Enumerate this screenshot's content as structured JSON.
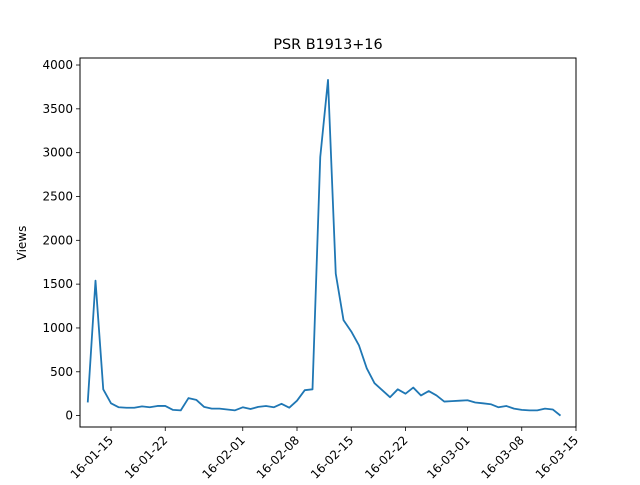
{
  "chart_data": {
    "type": "line",
    "title": "PSR B1913+16",
    "xlabel": "",
    "ylabel": "Views",
    "ylim": [
      -130,
      4080
    ],
    "yticks": [
      0,
      500,
      1000,
      1500,
      2000,
      2500,
      3000,
      3500,
      4000
    ],
    "xticks": [
      "2016-01-15",
      "2016-01-22",
      "2016-02-01",
      "2016-02-08",
      "2016-02-15",
      "2016-02-22",
      "2016-03-01",
      "2016-03-08",
      "2016-03-15"
    ],
    "xtick_labels": [
      "16-01-15",
      "16-01-22",
      "16-02-01",
      "16-02-08",
      "16-02-15",
      "16-02-22",
      "16-03-01",
      "16-03-08",
      "16-03-15"
    ],
    "xlim": [
      "2016-01-11",
      "2016-03-15"
    ],
    "grid": false,
    "line_color": "#1f77b4",
    "series": [
      {
        "x": [
          "2016-01-12",
          "2016-01-13",
          "2016-01-14",
          "2016-01-15",
          "2016-01-16",
          "2016-01-17",
          "2016-01-18",
          "2016-01-19",
          "2016-01-20",
          "2016-01-21",
          "2016-01-22",
          "2016-01-23",
          "2016-01-24",
          "2016-01-25",
          "2016-01-26",
          "2016-01-27",
          "2016-01-28",
          "2016-01-29",
          "2016-01-30",
          "2016-01-31",
          "2016-02-01",
          "2016-02-02",
          "2016-02-03",
          "2016-02-04",
          "2016-02-05",
          "2016-02-06",
          "2016-02-07",
          "2016-02-08",
          "2016-02-09",
          "2016-02-10",
          "2016-02-11",
          "2016-02-12",
          "2016-02-13",
          "2016-02-14",
          "2016-02-15",
          "2016-02-16",
          "2016-02-17",
          "2016-02-18",
          "2016-02-19",
          "2016-02-20",
          "2016-02-21",
          "2016-02-22",
          "2016-02-23",
          "2016-02-24",
          "2016-02-25",
          "2016-02-26",
          "2016-02-27",
          "2016-02-28",
          "2016-02-29",
          "2016-03-01",
          "2016-03-02",
          "2016-03-03",
          "2016-03-04",
          "2016-03-05",
          "2016-03-06",
          "2016-03-07",
          "2016-03-08",
          "2016-03-09",
          "2016-03-10",
          "2016-03-11",
          "2016-03-12",
          "2016-03-13"
        ],
        "values": [
          150,
          1540,
          300,
          140,
          95,
          90,
          90,
          105,
          95,
          110,
          110,
          65,
          60,
          200,
          180,
          100,
          80,
          80,
          70,
          60,
          95,
          75,
          100,
          110,
          95,
          135,
          90,
          170,
          290,
          300,
          2950,
          3830,
          1620,
          1090,
          960,
          800,
          540,
          370,
          290,
          210,
          300,
          250,
          320,
          230,
          280,
          230,
          160,
          165,
          170,
          175,
          150,
          140,
          130,
          95,
          110,
          80,
          65,
          60,
          60,
          80,
          70,
          0
        ]
      }
    ]
  }
}
